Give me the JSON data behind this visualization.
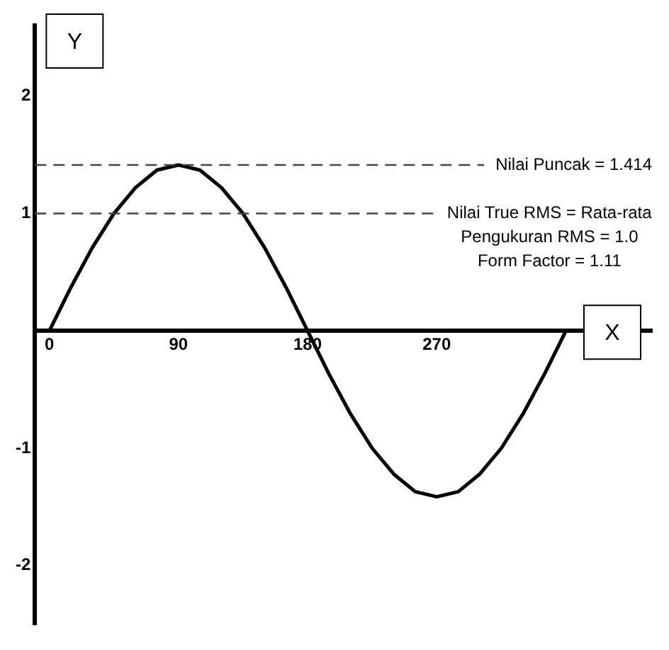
{
  "chart_data": {
    "type": "line",
    "xlabel": "X",
    "ylabel": "Y",
    "x": [
      0,
      15,
      30,
      45,
      60,
      75,
      90,
      105,
      120,
      135,
      150,
      165,
      180,
      195,
      210,
      225,
      240,
      255,
      270,
      285,
      300,
      315,
      330,
      345,
      360
    ],
    "series": [
      {
        "color": "#000000",
        "values": [
          0,
          0.37,
          0.71,
          1.0,
          1.22,
          1.37,
          1.414,
          1.37,
          1.22,
          1.0,
          0.71,
          0.37,
          0,
          -0.37,
          -0.71,
          -1.0,
          -1.22,
          -1.37,
          -1.414,
          -1.37,
          -1.22,
          -1.0,
          -0.71,
          -0.37,
          0
        ]
      }
    ],
    "xlim": [
      -10,
      420
    ],
    "xticks": [
      0,
      90,
      180,
      270
    ],
    "ylim": [
      -2.5,
      2.6
    ],
    "yticks": [
      -2,
      -1,
      1,
      2
    ],
    "ref_lines": [
      {
        "axis": "y",
        "value": 1.414,
        "label": "Nilai Puncak = 1.414",
        "color": "#444444",
        "line_style": "dashed"
      },
      {
        "axis": "y",
        "value": 1,
        "label": "Nilai True RMS = Rata-rata\nPengukuran RMS = 1.0\nForm Factor = 1.11",
        "color": "#444444",
        "line_style": "dashed"
      }
    ],
    "grid": false,
    "legend": false,
    "marker": "none",
    "line_style": "solid"
  }
}
